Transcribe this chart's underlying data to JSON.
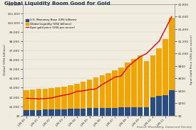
{
  "title": "Global Liquidity Boom Good for Gold",
  "title_color": "#1a2e4a",
  "background_color": "#f0ece0",
  "ylabel_left": "Global (US$ billions)",
  "ylabel_right": "Spot Gold Price (US$ per ounce)",
  "source": "Source: Bloomberg, Canaccord Genuity",
  "x_labels": [
    "JUN-00",
    "",
    "JUN-01",
    "",
    "JUN-02",
    "",
    "JUN-03",
    "",
    "JUN-04",
    "",
    "JUN-05",
    "",
    "JUN-06",
    "",
    "JUN-07",
    "",
    "JUN-08",
    "",
    "JUN-09",
    "",
    "JUN-10",
    "",
    "JUN-11",
    ""
  ],
  "us_monetary_base": [
    580,
    600,
    620,
    640,
    660,
    680,
    700,
    710,
    730,
    760,
    790,
    810,
    830,
    840,
    850,
    860,
    870,
    870,
    880,
    900,
    2000,
    2100,
    2200,
    2700
  ],
  "global_liquidity": [
    2700,
    2800,
    2850,
    2900,
    2950,
    3000,
    3100,
    3250,
    3400,
    3650,
    3900,
    4100,
    4300,
    4600,
    4900,
    5200,
    5700,
    6100,
    6500,
    5900,
    6500,
    7200,
    8200,
    10500
  ],
  "spot_gold": [
    280,
    275,
    270,
    275,
    285,
    310,
    330,
    350,
    390,
    400,
    420,
    430,
    500,
    560,
    620,
    640,
    780,
    870,
    950,
    1000,
    1100,
    1200,
    1400,
    1600
  ],
  "bar_color_blue": "#2b4c7e",
  "bar_color_orange": "#f0a500",
  "line_color": "#dd0000",
  "grid_color": "#d0ccc0",
  "ylim_left": [
    0,
    12000
  ],
  "ylim_right": [
    0,
    1800
  ],
  "yticks_left": [
    0,
    1000,
    2000,
    3000,
    4000,
    5000,
    6000,
    7000,
    8000,
    9000,
    10000,
    11000,
    12000
  ],
  "ytick_labels_left": [
    "$0",
    "$1,000",
    "$2,000",
    "$3,000",
    "$4,000",
    "$5,000",
    "$6,000",
    "$7,000",
    "$8,000",
    "$9,000",
    "$10,000",
    "$11,000",
    "$12,000"
  ],
  "yticks_right": [
    0,
    200,
    400,
    600,
    800,
    1000,
    1200,
    1400,
    1600,
    1800
  ],
  "ytick_labels_right": [
    "$0",
    "$200",
    "$400",
    "$600",
    "$800",
    "$1,000",
    "$1,200",
    "$1,400",
    "$1,600",
    "$1,800"
  ],
  "legend_labels": [
    "U.S. Monetary Base (US$ billions)",
    "Global Liquidity (US$ billions)",
    "Spot gold price (US$ per ounce)"
  ]
}
